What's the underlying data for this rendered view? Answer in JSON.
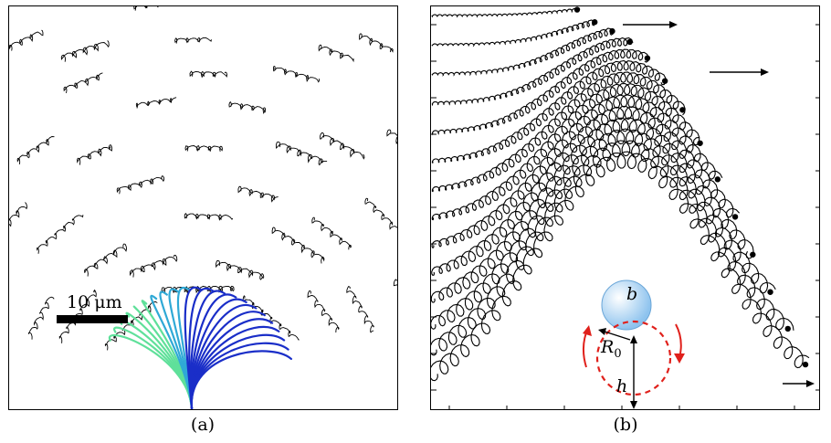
{
  "panel_a": {
    "caption": "(a)",
    "scale_bar_label": "10 μm"
  },
  "panel_b": {
    "caption": "(b)",
    "particle_label": "b",
    "radius_label": "R",
    "radius_subscript": "0",
    "height_label": "h"
  },
  "colors": {
    "trajectory": "#000000",
    "circle_dashed": "#e0201b",
    "rotation_arrows": "#e0201b",
    "particle_fill": "#8ec3ee",
    "filament_blue": "#1a2ec8",
    "filament_green": "#5fe09a"
  }
}
